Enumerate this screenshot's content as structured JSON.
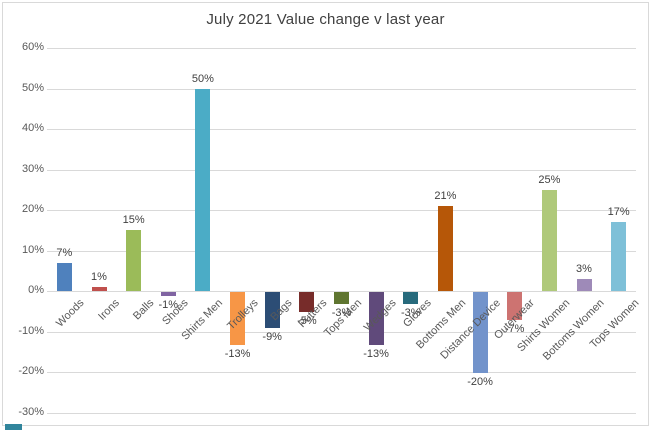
{
  "window": {
    "background": "#ffffff",
    "frame_border_color": "#d9d9d9",
    "sheet_tab_color": "#31859c"
  },
  "chart_data": {
    "type": "bar",
    "title": "July 2021 Value change v last year",
    "title_color": "#404040",
    "categories": [
      "Woods",
      "Irons",
      "Balls",
      "Shoes",
      "Shirts Men",
      "Trolleys",
      "Bags",
      "Putters",
      "Tops Men",
      "Wedges",
      "Gloves",
      "Bottoms Men",
      "Distance Device",
      "Outerwear",
      "Shirts Women",
      "Bottoms Women",
      "Tops Women"
    ],
    "values": [
      7,
      1,
      15,
      -1,
      50,
      -13,
      -9,
      -5,
      -3,
      -13,
      -3,
      21,
      -20,
      -7,
      25,
      3,
      17
    ],
    "data_labels": [
      "7%",
      "1%",
      "15%",
      "-1%",
      "50%",
      "-13%",
      "-9%",
      "-5%",
      "-3%",
      "-13%",
      "-3%",
      "21%",
      "-20%",
      "-7%",
      "25%",
      "3%",
      "17%"
    ],
    "bar_colors": [
      "#4f81bd",
      "#c0504d",
      "#9bbb59",
      "#8064a2",
      "#4bacc6",
      "#f79646",
      "#2c4d75",
      "#772c2a",
      "#5f7530",
      "#604a7b",
      "#276a7c",
      "#b65708",
      "#7293cb",
      "#cd7371",
      "#afc97a",
      "#9e8ab8",
      "#7ec0d8"
    ],
    "xlabel": "",
    "ylabel": "",
    "y_axis": {
      "min": -30,
      "max": 60,
      "step": 10,
      "tick_labels": [
        "60%",
        "50%",
        "40%",
        "30%",
        "20%",
        "10%",
        "0%",
        "-10%",
        "-20%",
        "-30%"
      ]
    },
    "grid": true,
    "gridline_color": "#d9d9d9",
    "axis_label_color": "#595959",
    "data_label_color": "#404040",
    "legend_position": "none"
  }
}
